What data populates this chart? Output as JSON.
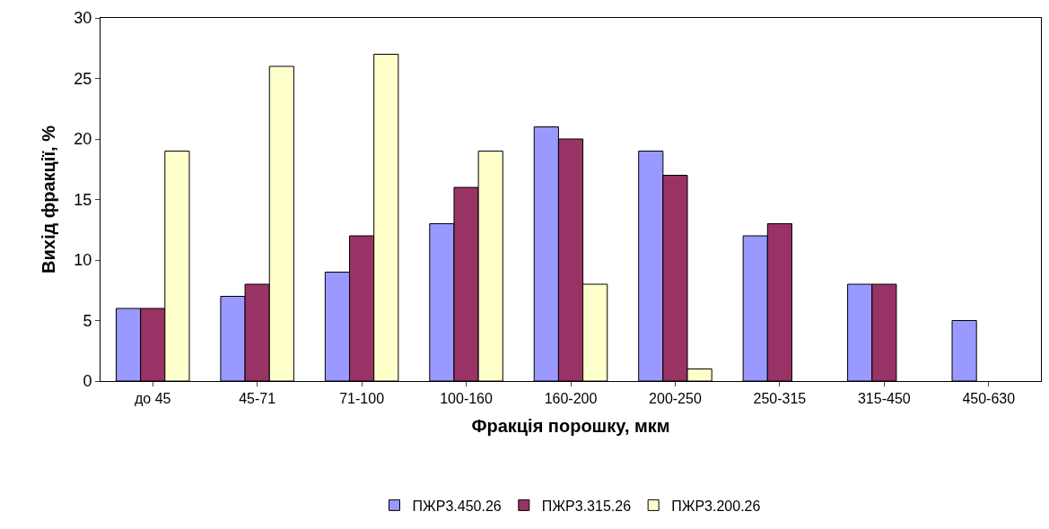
{
  "chart_data": {
    "type": "bar",
    "xlabel": "Фракція порошку, мкм",
    "ylabel": "Вихід фракції, %",
    "categories": [
      "до 45",
      "45-71",
      "71-100",
      "100-160",
      "160-200",
      "200-250",
      "250-315",
      "315-450",
      "450-630"
    ],
    "series": [
      {
        "name": "ПЖР3.450.26",
        "color": "#9999ff",
        "values": [
          6,
          7,
          9,
          13,
          21,
          19,
          12,
          8,
          5
        ]
      },
      {
        "name": "ПЖР3.315.26",
        "color": "#993366",
        "values": [
          6,
          8,
          12,
          16,
          20,
          17,
          13,
          8,
          null
        ]
      },
      {
        "name": "ПЖР3.200.26",
        "color": "#ffffcc",
        "values": [
          19,
          26,
          27,
          19,
          8,
          1,
          null,
          null,
          null
        ]
      }
    ],
    "ylim": [
      0,
      30
    ],
    "yticks": [
      0,
      5,
      10,
      15,
      20,
      25,
      30
    ],
    "grid": false,
    "legend": "bottom"
  }
}
